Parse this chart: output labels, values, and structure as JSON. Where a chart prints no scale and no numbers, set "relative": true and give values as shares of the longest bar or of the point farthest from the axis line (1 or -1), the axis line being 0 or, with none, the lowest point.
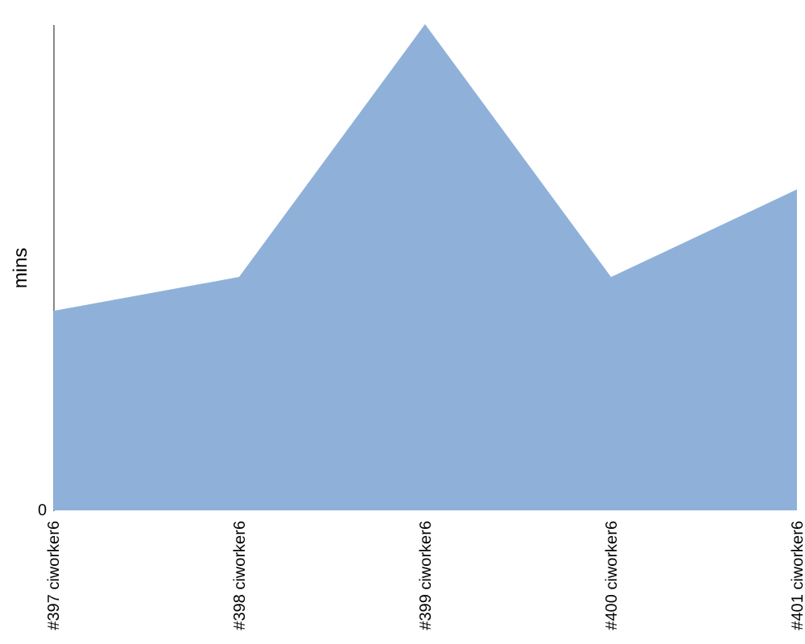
{
  "chart_data": {
    "type": "area",
    "ylabel": "mins",
    "relative": true,
    "categories": [
      "#397 ciworker6",
      "#398 ciworker6",
      "#399 ciworker6",
      "#400 ciworker6",
      "#401 ciworker6"
    ],
    "series": [
      {
        "color": "#8fb1d9",
        "values": [
          0.41,
          0.48,
          1,
          0.48,
          0.66
        ]
      }
    ],
    "annotations": [
      "0"
    ]
  }
}
